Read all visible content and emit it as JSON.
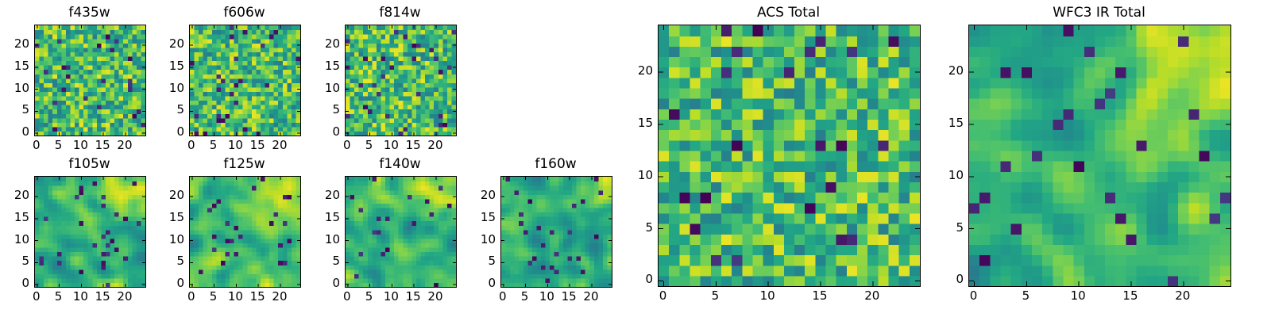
{
  "chart_data": [
    {
      "id": "f435w",
      "type": "heatmap",
      "title": "f435w",
      "grid_size": 25,
      "x_ticks": [
        "0",
        "5",
        "10",
        "15",
        "20"
      ],
      "y_ticks": [
        "0",
        "5",
        "10",
        "15",
        "20"
      ],
      "xlim": [
        0,
        25
      ],
      "ylim": [
        0,
        25
      ],
      "colormap": "viridis",
      "texture": "noise",
      "seed": 435
    },
    {
      "id": "f606w",
      "type": "heatmap",
      "title": "f606w",
      "grid_size": 25,
      "x_ticks": [
        "0",
        "5",
        "10",
        "15",
        "20"
      ],
      "y_ticks": [
        "0",
        "5",
        "10",
        "15",
        "20"
      ],
      "xlim": [
        0,
        25
      ],
      "ylim": [
        0,
        25
      ],
      "colormap": "viridis",
      "texture": "noise",
      "seed": 606
    },
    {
      "id": "f814w",
      "type": "heatmap",
      "title": "f814w",
      "grid_size": 25,
      "x_ticks": [
        "0",
        "5",
        "10",
        "15",
        "20"
      ],
      "y_ticks": [
        "0",
        "5",
        "10",
        "15",
        "20"
      ],
      "xlim": [
        0,
        25
      ],
      "ylim": [
        0,
        25
      ],
      "colormap": "viridis",
      "texture": "noise",
      "seed": 814
    },
    {
      "id": "f105w",
      "type": "heatmap",
      "title": "f105w",
      "grid_size": 25,
      "x_ticks": [
        "0",
        "5",
        "10",
        "15",
        "20"
      ],
      "y_ticks": [
        "0",
        "5",
        "10",
        "15",
        "20"
      ],
      "xlim": [
        0,
        25
      ],
      "ylim": [
        0,
        25
      ],
      "colormap": "viridis",
      "texture": "smooth",
      "seed": 105
    },
    {
      "id": "f125w",
      "type": "heatmap",
      "title": "f125w",
      "grid_size": 25,
      "x_ticks": [
        "0",
        "5",
        "10",
        "15",
        "20"
      ],
      "y_ticks": [
        "0",
        "5",
        "10",
        "15",
        "20"
      ],
      "xlim": [
        0,
        25
      ],
      "ylim": [
        0,
        25
      ],
      "colormap": "viridis",
      "texture": "smooth",
      "seed": 125
    },
    {
      "id": "f140w",
      "type": "heatmap",
      "title": "f140w",
      "grid_size": 25,
      "x_ticks": [
        "0",
        "5",
        "10",
        "15",
        "20"
      ],
      "y_ticks": [
        "0",
        "5",
        "10",
        "15",
        "20"
      ],
      "xlim": [
        0,
        25
      ],
      "ylim": [
        0,
        25
      ],
      "colormap": "viridis",
      "texture": "smooth",
      "seed": 140
    },
    {
      "id": "f160w",
      "type": "heatmap",
      "title": "f160w",
      "grid_size": 25,
      "x_ticks": [
        "0",
        "5",
        "10",
        "15",
        "20"
      ],
      "y_ticks": [
        "0",
        "5",
        "10",
        "15",
        "20"
      ],
      "xlim": [
        0,
        25
      ],
      "ylim": [
        0,
        25
      ],
      "colormap": "viridis",
      "texture": "smooth",
      "seed": 160
    },
    {
      "id": "acs_total",
      "type": "heatmap",
      "title": "ACS Total",
      "grid_size": 25,
      "x_ticks": [
        "0",
        "5",
        "10",
        "15",
        "20"
      ],
      "y_ticks": [
        "0",
        "5",
        "10",
        "15",
        "20"
      ],
      "xlim": [
        0,
        25
      ],
      "ylim": [
        0,
        25
      ],
      "colormap": "viridis",
      "texture": "noise",
      "seed": 2001
    },
    {
      "id": "wfc3_ir_total",
      "type": "heatmap",
      "title": "WFC3 IR Total",
      "grid_size": 25,
      "x_ticks": [
        "0",
        "5",
        "10",
        "15",
        "20"
      ],
      "y_ticks": [
        "0",
        "5",
        "10",
        "15",
        "20"
      ],
      "xlim": [
        0,
        25
      ],
      "ylim": [
        0,
        25
      ],
      "colormap": "viridis",
      "texture": "smooth",
      "seed": 3003
    }
  ]
}
